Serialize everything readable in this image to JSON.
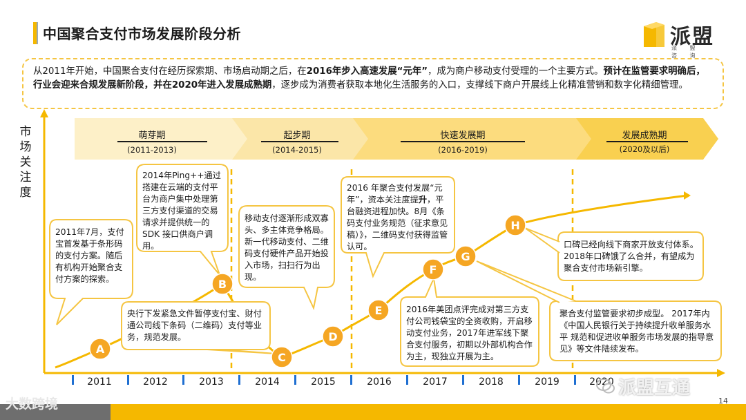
{
  "header": {
    "title": "中国聚合支付市场发展阶段分析",
    "logo_text": "派盟",
    "logo_sub": "派 盟 咨 询"
  },
  "summary": {
    "p1": "从2011年开始，中国聚合支付在经历探索期、市场启动期之后，在",
    "b1": "2016年步入高速发展“元年”",
    "p2": "，成为商户移动支付受理的一个主要方式。",
    "b2": "预计在监管要求明确后，行业会迎来合规发展新阶段，并在2020年进入发展成熟期",
    "p3": "，逐步成为消费者获取本地化生活服务的入口，支撑线下商户开展线上化精准营销和数字化精细管理。"
  },
  "y_axis": {
    "label": "市场关注度"
  },
  "phases": [
    {
      "name": "萌芽期",
      "years": "(2011-2013)"
    },
    {
      "name": "起步期",
      "years": "(2014-2015)"
    },
    {
      "name": "快速发展期",
      "years": "(2016-2019)"
    },
    {
      "name": "发展成熟期",
      "years": "(2020及以后)"
    }
  ],
  "x_axis": {
    "years": [
      "2011",
      "2012",
      "2013",
      "2014",
      "2015",
      "2016",
      "2017",
      "2018",
      "2019",
      "2020"
    ]
  },
  "markers": [
    "A",
    "B",
    "C",
    "D",
    "E",
    "F",
    "G",
    "H"
  ],
  "bubbles": {
    "a": "2011年7月，支付宝首发基于条形码的支付方案。随后有机构开始聚合支付方案的探索。",
    "b": "2014年Ping++通过搭建在云端的支付平台为商户集中处理第三方支付渠道的交易请求并提供统一的 SDK 接口供商户调用。",
    "c": "央行下发紧急文件暂停支付宝、财付通公司线下条码（二维码）支付等业务，规范发展。",
    "d": "移动支付逐渐形成双寡头、多主体竞争格局。新一代移动支付、二维码支付硬件产品开始投入市场，扫扫行为出现。",
    "e_line1": "2016 年聚合支付发展“元年”，资本关注度提",
    "e_bold": "升",
    "e_line2": "，平台融资进程加快。8月《条码支付业务规范（征求意见稿）》，二维码支付获得监管认可。",
    "f": "2016年美团点评完成对第三方支付公司钱袋宝的全资收购，开启移动支付业务，2017年进军线下聚合支付服务，初期以外部机构合作为主，现独立开展为主。",
    "g": "聚合支付监管要求初步成型。 2017年内《中国人民银行关于持续提升收单服务水平 规范和促进收单服务市场发展的指导意见》等文件陆续发布。",
    "h": "口碑已经向线下商家开放支付体系。2018年口碑饿了么合并，有望成为聚合支付市场新引擎。"
  },
  "footer": {
    "page_number": "14",
    "watermark_left": "大数跨境",
    "watermark_right": "派盟互通"
  },
  "colors": {
    "accent": "#f5b800",
    "marker": "#f5a623",
    "curve": "#f5b800",
    "tick": "#1f6fd1",
    "bubble_border": "#f5c542"
  }
}
